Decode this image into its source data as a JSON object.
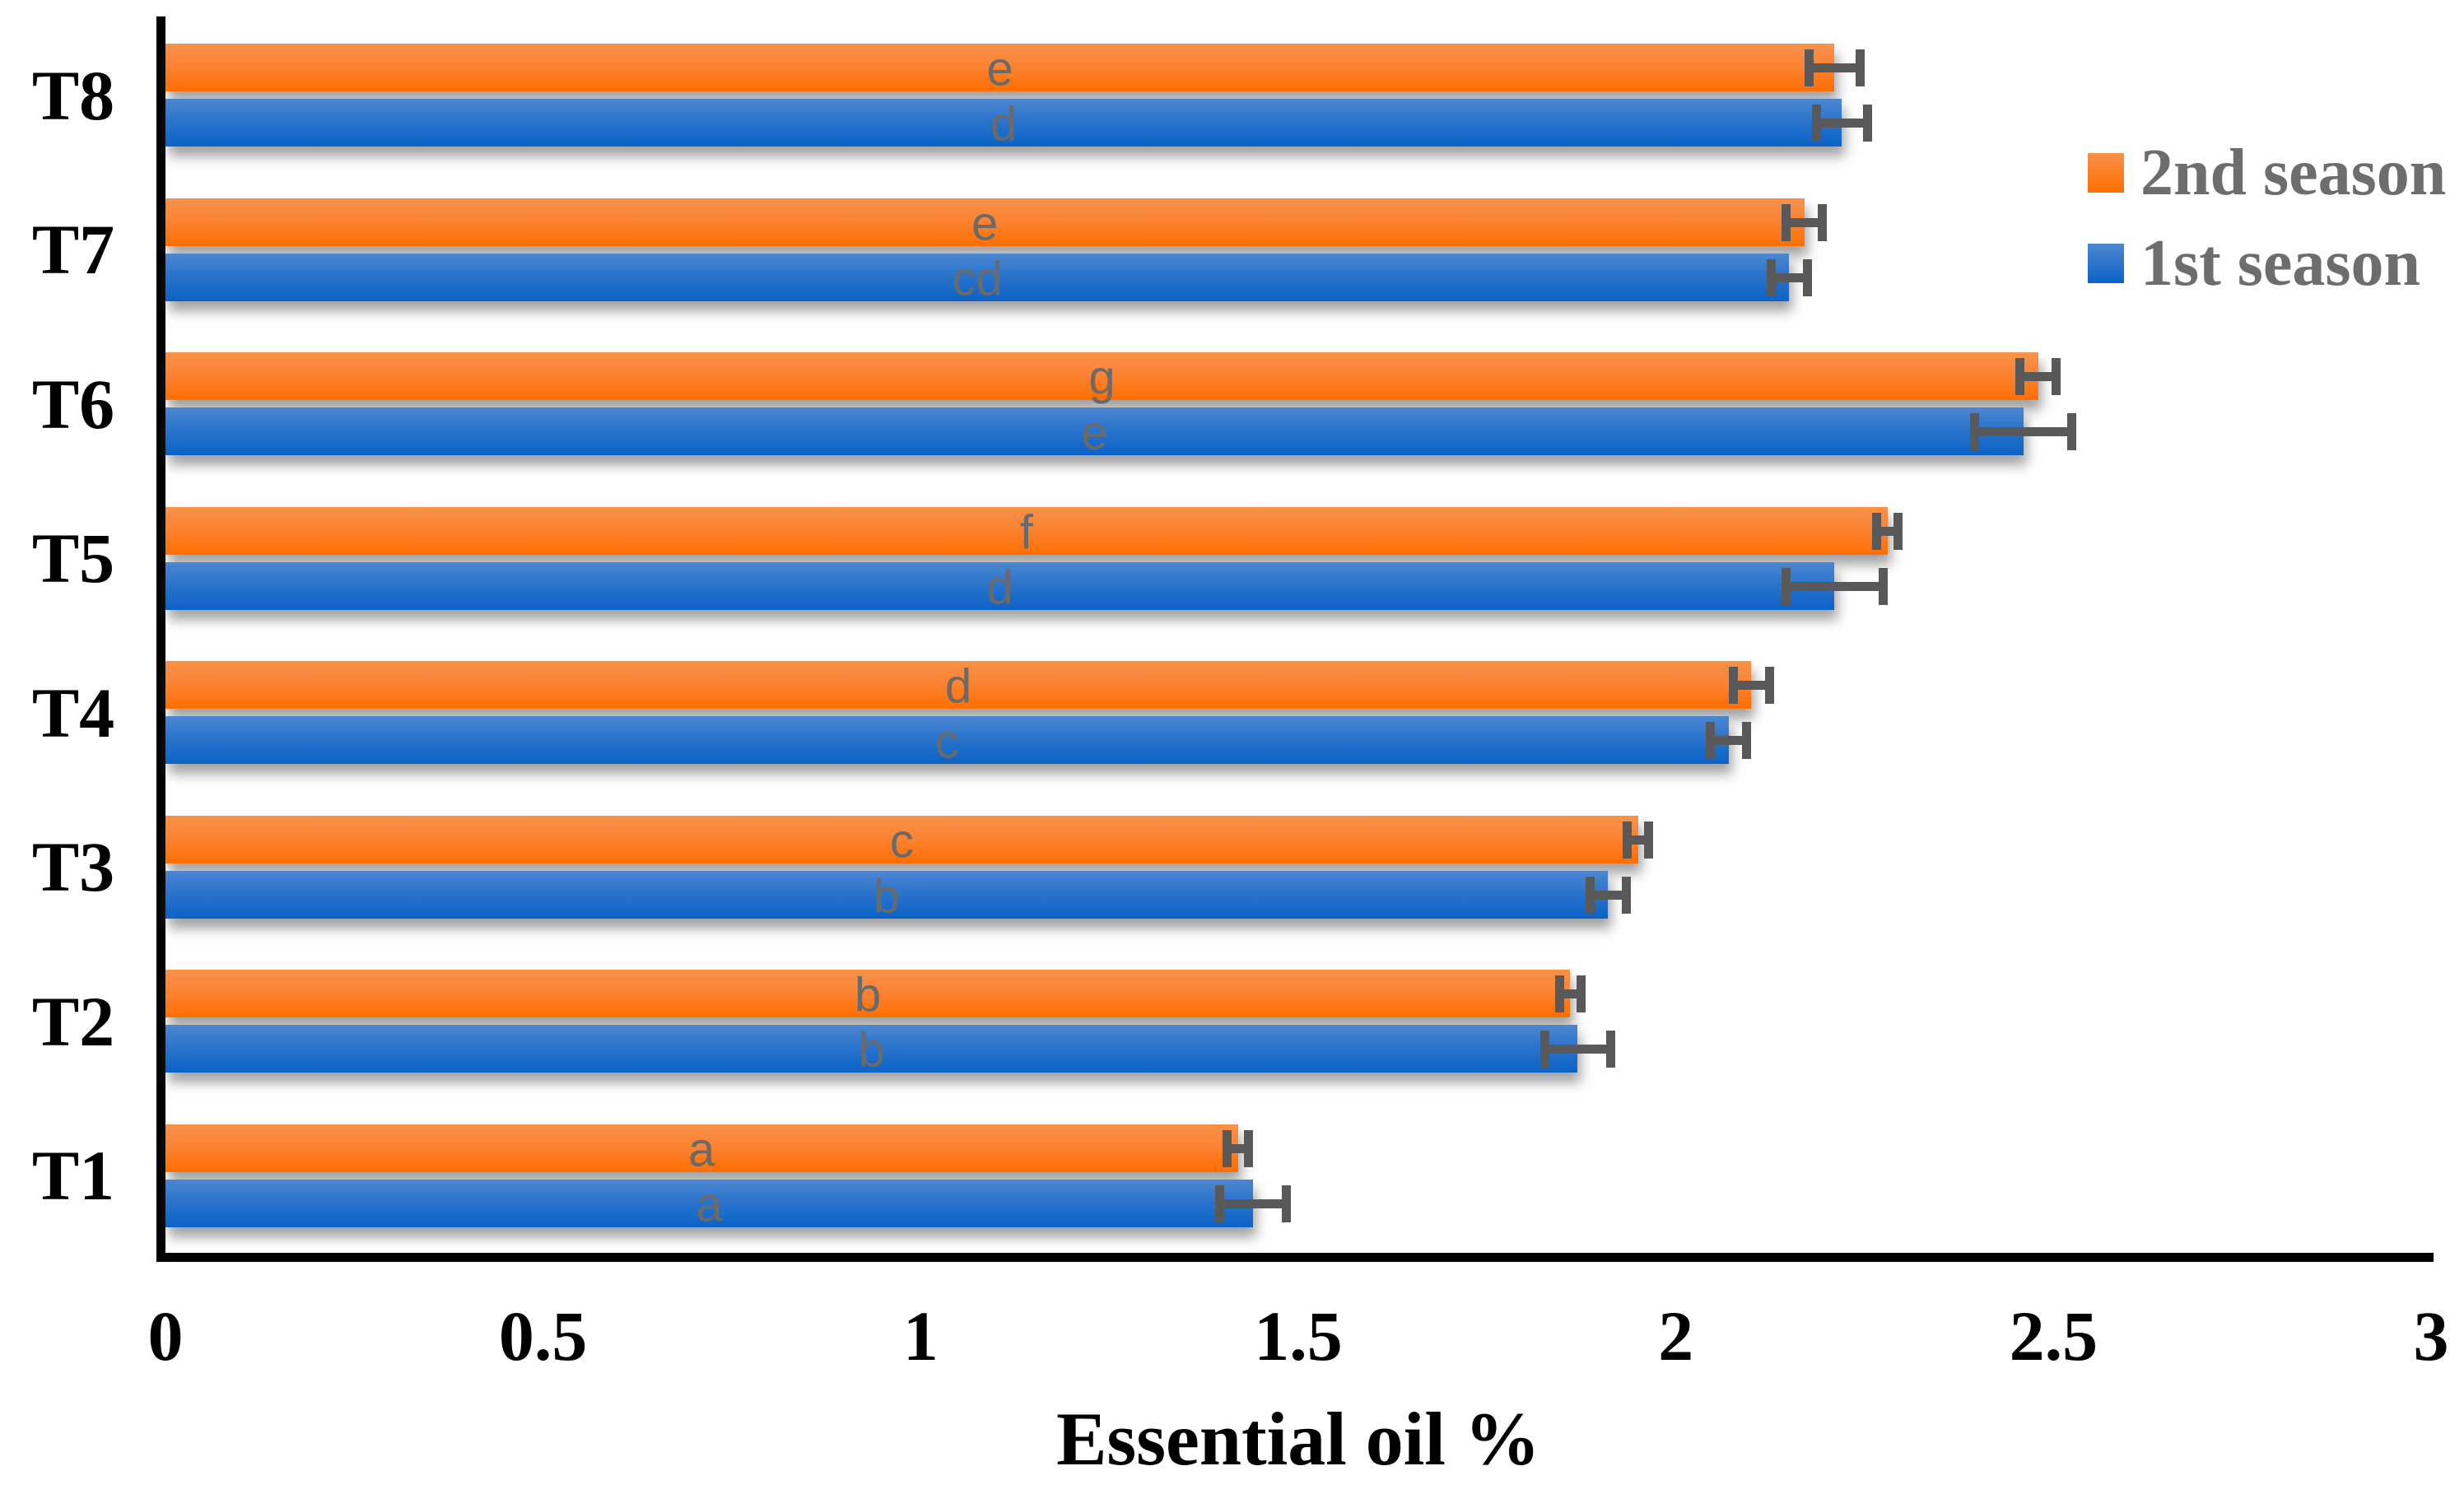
{
  "chart_data": {
    "type": "bar",
    "orientation": "horizontal",
    "title": "",
    "xlabel": "Essential oil %",
    "ylabel": "",
    "xlim": [
      0,
      3
    ],
    "xticks": [
      "0",
      "0.5",
      "1",
      "1.5",
      "2",
      "2.5",
      "3"
    ],
    "xtick_values": [
      0,
      0.5,
      1,
      1.5,
      2,
      2.5,
      3
    ],
    "grid": false,
    "legend_position": "top-right",
    "categories": [
      "T1",
      "T2",
      "T3",
      "T4",
      "T5",
      "T6",
      "T7",
      "T8"
    ],
    "category_order_on_screen_top_to_bottom": [
      "T8",
      "T7",
      "T6",
      "T5",
      "T4",
      "T3",
      "T2",
      "T1"
    ],
    "series": [
      {
        "name": "2nd season",
        "color": "#FF6E00",
        "color_top": "#F79249",
        "values": [
          1.42,
          1.86,
          1.95,
          2.1,
          2.28,
          2.48,
          2.17,
          2.21
        ],
        "errors": [
          0.02,
          0.02,
          0.02,
          0.03,
          0.02,
          0.03,
          0.03,
          0.04
        ],
        "letters": [
          "a",
          "b",
          "c",
          "d",
          "f",
          "g",
          "e",
          "e"
        ]
      },
      {
        "name": "1st season",
        "color": "#0A63C6",
        "color_top": "#4C87D1",
        "values": [
          1.44,
          1.87,
          1.91,
          2.07,
          2.21,
          2.46,
          2.15,
          2.22
        ],
        "errors": [
          0.05,
          0.05,
          0.03,
          0.03,
          0.07,
          0.07,
          0.03,
          0.04
        ],
        "letters": [
          "a",
          "b",
          "b",
          "c",
          "d",
          "e",
          "cd",
          "d"
        ]
      }
    ],
    "error_bar_color": "#595959",
    "letter_label_color": "#6a6a6a",
    "axis_color": "#000000"
  }
}
